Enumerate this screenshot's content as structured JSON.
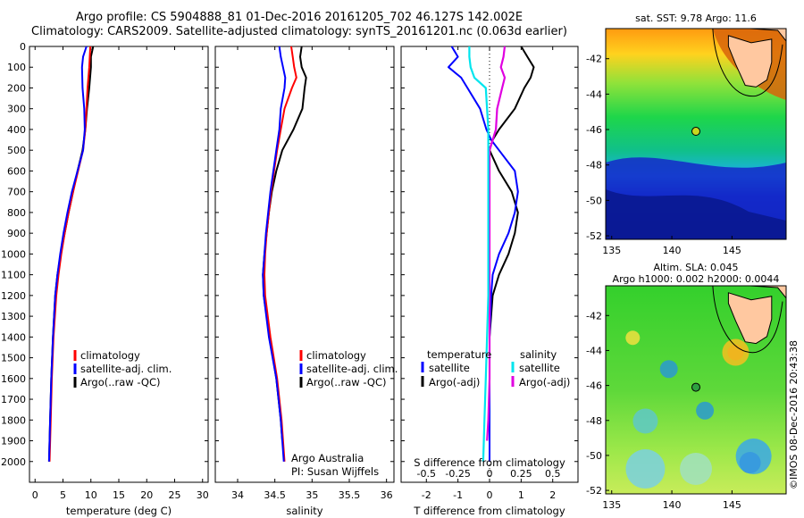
{
  "title": {
    "line1": "Argo profile: CS 5904888_81 01-Dec-2016 20161205_702 46.127S 142.002E",
    "line2": "Climatology: CARS2009. Satellite-adjusted climatology: synTS_20161201.nc (0.063d earlier)"
  },
  "colors": {
    "climatology": "#ff0000",
    "satellite": "#0000ff",
    "argo": "#000000",
    "sat_s": "#00e5ee",
    "argo_s": "#e000e0"
  },
  "chart_data": [
    {
      "type": "line",
      "id": "temperature",
      "xlabel": "temperature (deg C)",
      "ylabel": "",
      "xlim": [
        -1,
        31
      ],
      "ylim": [
        2100,
        0
      ],
      "xticks": [
        "0",
        "5",
        "10",
        "15",
        "20",
        "25",
        "30"
      ],
      "yticks": [
        "0",
        "100",
        "200",
        "300",
        "400",
        "500",
        "600",
        "700",
        "800",
        "900",
        "1000",
        "1100",
        "1200",
        "1300",
        "1400",
        "1500",
        "1600",
        "1700",
        "1800",
        "1900",
        "2000"
      ],
      "legend": [
        "climatology",
        "satellite-adj. clim.",
        "Argo(..raw -QC)"
      ],
      "series": [
        {
          "name": "climatology",
          "depth": [
            0,
            100,
            200,
            400,
            500,
            600,
            700,
            800,
            900,
            1000,
            1100,
            1200,
            1400,
            1600,
            1800,
            2000
          ],
          "values": [
            9.9,
            9.7,
            9.4,
            9.0,
            8.6,
            7.7,
            6.8,
            6.0,
            5.3,
            4.7,
            4.2,
            3.8,
            3.3,
            3.0,
            2.8,
            2.6
          ]
        },
        {
          "name": "satellite-adj. clim.",
          "depth": [
            0,
            50,
            100,
            200,
            300,
            400,
            500,
            600,
            700,
            800,
            900,
            1000,
            1100,
            1200,
            1400,
            1600,
            1800,
            2000
          ],
          "values": [
            9.2,
            8.6,
            8.4,
            8.5,
            8.8,
            8.9,
            8.6,
            7.6,
            6.6,
            5.8,
            5.1,
            4.5,
            4.0,
            3.6,
            3.2,
            2.9,
            2.7,
            2.5
          ]
        },
        {
          "name": "Argo(..raw -QC)",
          "depth": [
            0,
            50,
            100,
            200,
            300,
            400,
            500,
            600,
            700,
            800,
            900,
            1000,
            1100,
            1200,
            1400,
            1600,
            1800,
            2000
          ],
          "values": [
            10.4,
            10.0,
            10.0,
            9.7,
            9.3,
            9.0,
            8.5,
            7.6,
            6.8,
            6.0,
            5.3,
            4.6,
            4.0,
            3.6,
            3.2,
            2.9,
            2.7,
            2.5
          ]
        }
      ]
    },
    {
      "type": "line",
      "id": "salinity",
      "xlabel": "salinity",
      "ylabel": "",
      "xlim": [
        33.7,
        36.1
      ],
      "ylim": [
        2100,
        0
      ],
      "xticks": [
        "34",
        "34.5",
        "35",
        "35.5",
        "36"
      ],
      "legend": [
        "climatology",
        "satellite-adj. clim.",
        "Argo(..raw -QC)"
      ],
      "annotation": [
        "Argo Australia",
        "PI: Susan Wijffels"
      ],
      "series": [
        {
          "name": "climatology",
          "depth": [
            0,
            50,
            100,
            150,
            200,
            300,
            400,
            500,
            600,
            700,
            800,
            900,
            1000,
            1100,
            1200,
            1400,
            1600,
            1800,
            2000
          ],
          "values": [
            34.72,
            34.74,
            34.76,
            34.79,
            34.73,
            34.63,
            34.58,
            34.53,
            34.49,
            34.45,
            34.42,
            34.39,
            34.37,
            34.36,
            34.37,
            34.44,
            34.53,
            34.59,
            34.63
          ]
        },
        {
          "name": "satellite-adj. clim.",
          "depth": [
            0,
            50,
            100,
            150,
            200,
            300,
            400,
            500,
            600,
            700,
            800,
            900,
            1000,
            1100,
            1200,
            1400,
            1600,
            1800,
            2000
          ],
          "values": [
            34.56,
            34.58,
            34.61,
            34.64,
            34.63,
            34.58,
            34.56,
            34.52,
            34.48,
            34.44,
            34.41,
            34.38,
            34.36,
            34.34,
            34.35,
            34.42,
            34.52,
            34.58,
            34.62
          ]
        },
        {
          "name": "Argo(..raw -QC)",
          "depth": [
            0,
            50,
            100,
            150,
            200,
            300,
            350,
            400,
            500,
            600,
            700,
            800,
            900,
            1000,
            1100,
            1200,
            1400,
            1600,
            1800,
            1900
          ],
          "values": [
            34.86,
            34.84,
            34.86,
            34.92,
            34.9,
            34.87,
            34.81,
            34.75,
            34.6,
            34.52,
            34.46,
            34.42,
            34.39,
            34.36,
            34.34,
            34.35,
            34.43,
            34.52,
            34.58,
            34.6
          ]
        }
      ]
    },
    {
      "type": "line",
      "id": "difference",
      "xlabel": "T difference from climatology",
      "xlabel_top": "S difference from climatology",
      "xlim": [
        -2.8,
        2.8
      ],
      "ylim": [
        2100,
        0
      ],
      "xticks": [
        "-2",
        "-1",
        "0",
        "1",
        "2"
      ],
      "xticks_top": [
        "-0.5",
        "-0.25",
        "0",
        "0.25",
        "0.5"
      ],
      "legend": {
        "temperature_head": "temperature",
        "salinity_head": "salinity",
        "t_sat": "satellite",
        "t_argo": "Argo(-adj)",
        "s_sat": "satellite",
        "s_argo": "Argo(-adj)"
      },
      "series": [
        {
          "name": "T satellite",
          "depth": [
            0,
            50,
            100,
            150,
            200,
            300,
            400,
            450,
            500,
            600,
            700,
            800,
            900,
            1000,
            1100,
            1200,
            1400,
            1600,
            1800,
            2000
          ],
          "values": [
            -1.2,
            -1.0,
            -1.3,
            -0.9,
            -0.7,
            -0.3,
            -0.1,
            0.05,
            0.3,
            0.8,
            0.9,
            0.8,
            0.6,
            0.3,
            0.1,
            0.05,
            0.0,
            0.0,
            0.0,
            0.0
          ]
        },
        {
          "name": "T Argo(-adj)",
          "depth": [
            0,
            50,
            100,
            150,
            200,
            300,
            400,
            450,
            500,
            600,
            700,
            800,
            900,
            1000,
            1100,
            1200,
            1400,
            1600,
            1800,
            2000
          ],
          "values": [
            1.0,
            1.2,
            1.4,
            1.3,
            1.1,
            0.8,
            0.3,
            0.1,
            0.0,
            0.3,
            0.7,
            0.9,
            0.8,
            0.6,
            0.3,
            0.1,
            0.0,
            0.0,
            0.0,
            0.0
          ]
        },
        {
          "name": "S satellite",
          "depth": [
            0,
            50,
            100,
            150,
            200,
            300,
            400,
            500,
            600,
            800,
            1000,
            1200,
            1400,
            1600,
            1800,
            2000
          ],
          "values": [
            -0.16,
            -0.16,
            -0.15,
            -0.12,
            -0.03,
            -0.02,
            -0.01,
            -0.01,
            -0.01,
            -0.01,
            -0.01,
            -0.01,
            -0.02,
            -0.03,
            -0.04,
            -0.05
          ]
        },
        {
          "name": "S Argo(-adj)",
          "depth": [
            0,
            50,
            100,
            150,
            200,
            300,
            400,
            500,
            600,
            700,
            800,
            1000,
            1200,
            1400,
            1600,
            1800,
            1900
          ],
          "values": [
            0.12,
            0.11,
            0.09,
            0.12,
            0.1,
            0.06,
            0.05,
            0.0,
            0.0,
            0.0,
            0.0,
            0.0,
            0.0,
            0.0,
            0.0,
            -0.01,
            -0.02
          ]
        }
      ]
    },
    {
      "type": "heatmap",
      "id": "sst_map",
      "title": "sat. SST: 9.78 Argo: 11.6",
      "xlim": [
        134.5,
        149.5
      ],
      "ylim": [
        -52.2,
        -40.3
      ],
      "xticks": [
        "135",
        "140",
        "145"
      ],
      "yticks": [
        "-42",
        "-44",
        "-46",
        "-48",
        "-50",
        "-52"
      ],
      "marker": {
        "lon": 142.0,
        "lat": -46.1
      }
    },
    {
      "type": "heatmap",
      "id": "sla_map",
      "title": "Altim. SLA: 0.045",
      "subtitle": "Argo h1000: 0.002 h2000: 0.0044",
      "xlim": [
        134.5,
        149.5
      ],
      "ylim": [
        -52.2,
        -40.3
      ],
      "xticks": [
        "135",
        "140",
        "145"
      ],
      "yticks": [
        "-42",
        "-44",
        "-46",
        "-48",
        "-50",
        "-52"
      ],
      "marker": {
        "lon": 142.0,
        "lat": -46.1
      }
    }
  ],
  "credit": "©IMOS 08-Dec-2016 20:43:38"
}
